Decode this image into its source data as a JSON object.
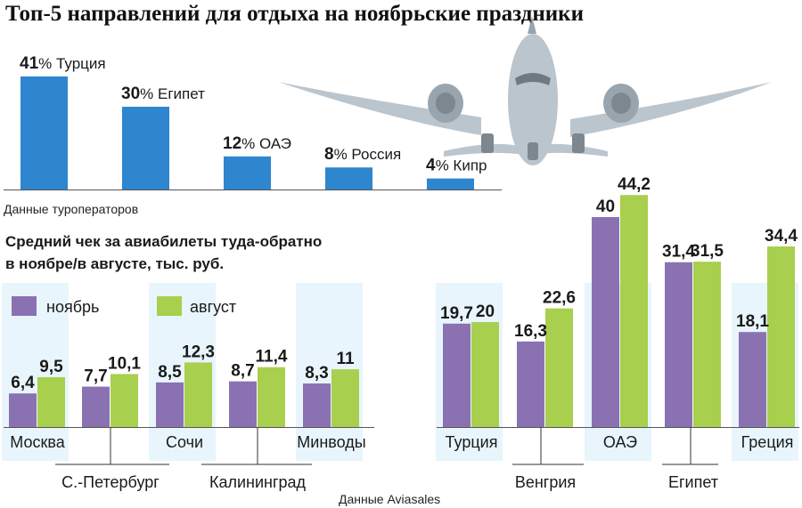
{
  "title": "Топ-5 направлений для отдыха на ноябрьские праздники",
  "colors": {
    "top_bar": "#2e86cf",
    "november": "#8a72b2",
    "august": "#a8cf4e",
    "highlight": "#d5ecf9",
    "text": "#1a1a1a"
  },
  "chart_data": [
    {
      "type": "bar",
      "categories": [
        "Турция",
        "Египет",
        "ОАЭ",
        "Россия",
        "Кипр"
      ],
      "values": [
        41,
        30,
        12,
        8,
        4
      ],
      "value_labels": [
        "41",
        "30",
        "12",
        "8",
        "4"
      ],
      "unit": "%",
      "source": "Данные туроператоров",
      "decoration": "airplane-illustration"
    },
    {
      "type": "bar",
      "title_lines": [
        "Средний чек за авиабилеты туда-обратно",
        "в ноябре/в августе, тыс. руб."
      ],
      "categories": [
        "Москва",
        "С.-Петербург",
        "Сочи",
        "Калининград",
        "Минводы",
        "Турция",
        "Венгрия",
        "ОАЭ",
        "Египет",
        "Греция"
      ],
      "series": [
        {
          "name": "ноябрь",
          "values": [
            6.4,
            7.7,
            8.5,
            8.7,
            8.3,
            19.7,
            16.3,
            40,
            31.4,
            18.1
          ],
          "labels": [
            "6,4",
            "7,7",
            "8,5",
            "8,7",
            "8,3",
            "19,7",
            "16,3",
            "40",
            "31,4",
            "18,1"
          ]
        },
        {
          "name": "август",
          "values": [
            9.5,
            10.1,
            12.3,
            11.4,
            11,
            20,
            22.6,
            44.2,
            31.5,
            34.4
          ],
          "labels": [
            "9,5",
            "10,1",
            "12,3",
            "11,4",
            "11",
            "20",
            "22,6",
            "44,2",
            "31,5",
            "34,4"
          ]
        }
      ],
      "legend": {
        "november": "ноябрь",
        "august": "август",
        "position": "top-left"
      },
      "source": "Данные Aviasales"
    }
  ]
}
